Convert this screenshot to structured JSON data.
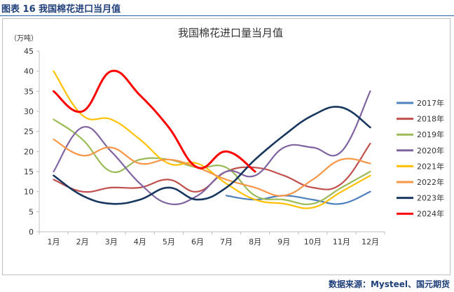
{
  "figure": {
    "caption": "图表 16  我国棉花进口当月值",
    "source": "数据来源：Mysteel、国元期货"
  },
  "chart_data": {
    "type": "line",
    "title": "我国棉花进口量当月值",
    "unit": "（万吨）",
    "xlabel": "",
    "ylabel": "",
    "ylim": [
      0,
      45
    ],
    "yticks": [
      0,
      5,
      10,
      15,
      20,
      25,
      30,
      35,
      40,
      45
    ],
    "grid": false,
    "legend_position": "right",
    "categories": [
      "1月",
      "2月",
      "3月",
      "4月",
      "5月",
      "6月",
      "7月",
      "8月",
      "9月",
      "10月",
      "11月",
      "12月"
    ],
    "series": [
      {
        "name": "2017年",
        "color": "#4f81bd",
        "width": 2.2,
        "values": [
          null,
          null,
          null,
          null,
          null,
          null,
          9,
          8,
          9,
          8,
          7,
          10
        ]
      },
      {
        "name": "2018年",
        "color": "#c0504d",
        "width": 2.2,
        "values": [
          13,
          10,
          11,
          11,
          13,
          10,
          15,
          16,
          14,
          11,
          12,
          22
        ]
      },
      {
        "name": "2019年",
        "color": "#9bbb59",
        "width": 2.2,
        "values": [
          28,
          23,
          15,
          18,
          18,
          16,
          16,
          9,
          8,
          7,
          11,
          15
        ]
      },
      {
        "name": "2020年",
        "color": "#8064a2",
        "width": 2.2,
        "values": [
          15,
          26,
          20,
          12,
          7,
          9,
          15,
          14,
          21,
          21,
          20,
          35
        ]
      },
      {
        "name": "2021年",
        "color": "#ffc000",
        "width": 2.2,
        "values": [
          40,
          29,
          28,
          23,
          17,
          17,
          12,
          8,
          7,
          6,
          10,
          14
        ]
      },
      {
        "name": "2022年",
        "color": "#f79646",
        "width": 2.2,
        "values": [
          23,
          19,
          21,
          17,
          18,
          16,
          13,
          11,
          9,
          13,
          18,
          17
        ]
      },
      {
        "name": "2023年",
        "color": "#17375e",
        "width": 2.6,
        "values": [
          14,
          9,
          7,
          8,
          11,
          8,
          11,
          18,
          24,
          29,
          31,
          26
        ]
      },
      {
        "name": "2024年",
        "color": "#ff0000",
        "width": 3,
        "values": [
          35,
          30,
          40,
          34,
          26,
          16,
          20,
          15,
          null,
          null,
          null,
          null
        ]
      }
    ]
  }
}
